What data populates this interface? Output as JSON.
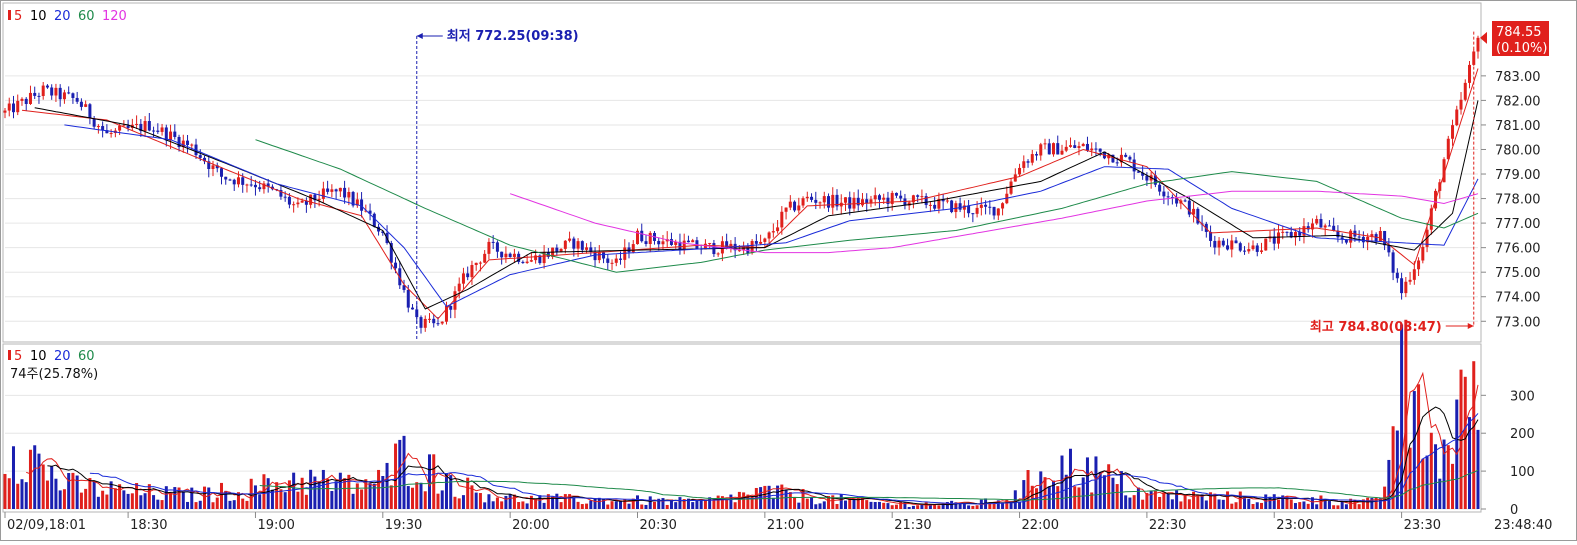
{
  "chart_data": [
    {
      "type": "candlestick",
      "name": "price-panel",
      "legend": [
        {
          "label": "5",
          "color": "#e0201c",
          "marker": true
        },
        {
          "label": "10",
          "color": "#000000"
        },
        {
          "label": "20",
          "color": "#1a2bd8"
        },
        {
          "label": "60",
          "color": "#1e8a4a"
        },
        {
          "label": "120",
          "color": "#e234e2"
        }
      ],
      "ylim": [
        772.4,
        784.95
      ],
      "yticks": [
        "773.00",
        "774.00",
        "775.00",
        "776.00",
        "777.00",
        "778.00",
        "779.00",
        "780.00",
        "781.00",
        "782.00",
        "783.00"
      ],
      "yticks_values": [
        773,
        774,
        775,
        776,
        777,
        778,
        779,
        780,
        781,
        782,
        783
      ],
      "current_price": {
        "value": "784.55",
        "change": "(0.10%)",
        "num": 784.55
      },
      "low_annotation": {
        "text": "최저 772.25(09:38)",
        "value": 772.25,
        "time": "19:38"
      },
      "high_annotation": {
        "text": "최고 784.80(03:47)",
        "value": 784.8,
        "time": "23:47"
      },
      "candle_points": [
        [
          "18:01",
          781.5
        ],
        [
          "18:10",
          782.4
        ],
        [
          "18:18",
          782.0
        ],
        [
          "18:25",
          780.6
        ],
        [
          "18:35",
          781.0
        ],
        [
          "18:45",
          780.1
        ],
        [
          "18:52",
          778.9
        ],
        [
          "19:00",
          778.6
        ],
        [
          "19:05",
          778.2
        ],
        [
          "19:10",
          777.6
        ],
        [
          "19:15",
          778.1
        ],
        [
          "19:20",
          778.3
        ],
        [
          "19:25",
          777.6
        ],
        [
          "19:30",
          776.6
        ],
        [
          "19:35",
          774.2
        ],
        [
          "19:38",
          772.9
        ],
        [
          "19:43",
          772.8
        ],
        [
          "19:50",
          775.0
        ],
        [
          "19:55",
          776.0
        ],
        [
          "20:05",
          775.5
        ],
        [
          "20:15",
          776.2
        ],
        [
          "20:25",
          775.3
        ],
        [
          "20:30",
          776.5
        ],
        [
          "20:35",
          776.3
        ],
        [
          "20:45",
          776.0
        ],
        [
          "20:55",
          776.0
        ],
        [
          "21:00",
          776.2
        ],
        [
          "21:05",
          777.5
        ],
        [
          "21:10",
          778.0
        ],
        [
          "21:20",
          777.8
        ],
        [
          "21:30",
          778.0
        ],
        [
          "21:40",
          777.8
        ],
        [
          "21:50",
          777.5
        ],
        [
          "21:55",
          777.6
        ],
        [
          "22:00",
          779.4
        ],
        [
          "22:05",
          780.0
        ],
        [
          "22:15",
          780.1
        ],
        [
          "22:25",
          779.6
        ],
        [
          "22:35",
          778.2
        ],
        [
          "22:40",
          777.6
        ],
        [
          "22:45",
          776.3
        ],
        [
          "22:55",
          776.0
        ],
        [
          "23:05",
          776.6
        ],
        [
          "23:10",
          777.0
        ],
        [
          "23:15",
          776.4
        ],
        [
          "23:25",
          776.5
        ],
        [
          "23:30",
          774.2
        ],
        [
          "23:35",
          776.0
        ],
        [
          "23:40",
          779.6
        ],
        [
          "23:45",
          782.6
        ],
        [
          "23:48",
          784.55
        ]
      ],
      "ma_points": {
        "5": [
          [
            "18:05",
            781.6
          ],
          [
            "18:25",
            781.2
          ],
          [
            "18:50",
            779.4
          ],
          [
            "19:10",
            778.0
          ],
          [
            "19:25",
            777.3
          ],
          [
            "19:35",
            774.5
          ],
          [
            "19:43",
            773.1
          ],
          [
            "19:55",
            775.5
          ],
          [
            "20:20",
            775.8
          ],
          [
            "20:45",
            776.1
          ],
          [
            "21:00",
            776.0
          ],
          [
            "21:10",
            777.7
          ],
          [
            "21:35",
            777.9
          ],
          [
            "22:00",
            778.9
          ],
          [
            "22:15",
            780.0
          ],
          [
            "22:30",
            779.3
          ],
          [
            "22:45",
            776.6
          ],
          [
            "23:10",
            776.8
          ],
          [
            "23:25",
            776.4
          ],
          [
            "23:33",
            775.3
          ],
          [
            "23:40",
            779.0
          ],
          [
            "23:48",
            783.3
          ]
        ],
        "10": [
          [
            "18:08",
            781.7
          ],
          [
            "18:30",
            781.0
          ],
          [
            "18:55",
            779.3
          ],
          [
            "19:15",
            777.9
          ],
          [
            "19:30",
            776.7
          ],
          [
            "19:40",
            773.5
          ],
          [
            "19:50",
            774.3
          ],
          [
            "20:05",
            775.8
          ],
          [
            "20:30",
            775.9
          ],
          [
            "21:00",
            776.0
          ],
          [
            "21:15",
            777.3
          ],
          [
            "21:40",
            777.9
          ],
          [
            "22:05",
            778.7
          ],
          [
            "22:20",
            779.9
          ],
          [
            "22:40",
            778.0
          ],
          [
            "22:55",
            776.4
          ],
          [
            "23:15",
            776.5
          ],
          [
            "23:33",
            775.9
          ],
          [
            "23:42",
            777.4
          ],
          [
            "23:48",
            782.0
          ]
        ],
        "20": [
          [
            "18:15",
            781.0
          ],
          [
            "18:40",
            780.4
          ],
          [
            "19:05",
            778.6
          ],
          [
            "19:25",
            777.7
          ],
          [
            "19:35",
            776.0
          ],
          [
            "19:45",
            773.6
          ],
          [
            "20:00",
            774.9
          ],
          [
            "20:20",
            775.7
          ],
          [
            "20:50",
            776.0
          ],
          [
            "21:05",
            776.2
          ],
          [
            "21:20",
            777.1
          ],
          [
            "21:45",
            777.6
          ],
          [
            "22:05",
            778.3
          ],
          [
            "22:20",
            779.3
          ],
          [
            "22:35",
            779.2
          ],
          [
            "22:50",
            777.6
          ],
          [
            "23:10",
            776.4
          ],
          [
            "23:30",
            776.2
          ],
          [
            "23:40",
            776.1
          ],
          [
            "23:48",
            778.8
          ]
        ],
        "60": [
          [
            "19:00",
            780.4
          ],
          [
            "19:20",
            779.2
          ],
          [
            "19:40",
            777.6
          ],
          [
            "20:00",
            776.1
          ],
          [
            "20:25",
            775.0
          ],
          [
            "20:45",
            775.4
          ],
          [
            "21:00",
            775.9
          ],
          [
            "21:20",
            776.3
          ],
          [
            "21:45",
            776.7
          ],
          [
            "22:10",
            777.6
          ],
          [
            "22:30",
            778.6
          ],
          [
            "22:50",
            779.1
          ],
          [
            "23:10",
            778.7
          ],
          [
            "23:30",
            777.2
          ],
          [
            "23:40",
            776.8
          ],
          [
            "23:48",
            777.4
          ]
        ],
        "120": [
          [
            "20:00",
            778.2
          ],
          [
            "20:20",
            777.0
          ],
          [
            "20:40",
            776.2
          ],
          [
            "21:00",
            775.8
          ],
          [
            "21:15",
            775.8
          ],
          [
            "21:30",
            776.0
          ],
          [
            "21:50",
            776.6
          ],
          [
            "22:10",
            777.2
          ],
          [
            "22:30",
            777.9
          ],
          [
            "22:50",
            778.3
          ],
          [
            "23:10",
            778.3
          ],
          [
            "23:30",
            778.1
          ],
          [
            "23:40",
            777.8
          ],
          [
            "23:48",
            778.2
          ]
        ]
      }
    },
    {
      "type": "bar",
      "name": "volume-panel",
      "legend": [
        {
          "label": "5",
          "color": "#e0201c",
          "marker": true
        },
        {
          "label": "10",
          "color": "#000000"
        },
        {
          "label": "20",
          "color": "#1a2bd8"
        },
        {
          "label": "60",
          "color": "#1e8a4a"
        }
      ],
      "volume_label": "74주(25.78%)",
      "ylim": [
        0,
        380
      ],
      "yticks": [
        "0",
        "100",
        "200",
        "300"
      ],
      "yticks_values": [
        0,
        100,
        200,
        300
      ],
      "volume_points": [
        [
          "18:01",
          120
        ],
        [
          "18:02",
          210
        ],
        [
          "18:15",
          70
        ],
        [
          "18:30",
          50
        ],
        [
          "18:45",
          40
        ],
        [
          "19:00",
          60
        ],
        [
          "19:10",
          90
        ],
        [
          "19:20",
          70
        ],
        [
          "19:30",
          80
        ],
        [
          "19:35",
          160
        ],
        [
          "19:40",
          120
        ],
        [
          "19:50",
          60
        ],
        [
          "20:00",
          30
        ],
        [
          "20:30",
          25
        ],
        [
          "20:45",
          20
        ],
        [
          "21:00",
          50
        ],
        [
          "21:15",
          30
        ],
        [
          "21:30",
          15
        ],
        [
          "21:50",
          15
        ],
        [
          "22:00",
          40
        ],
        [
          "22:05",
          120
        ],
        [
          "22:15",
          120
        ],
        [
          "22:30",
          40
        ],
        [
          "22:45",
          35
        ],
        [
          "23:00",
          30
        ],
        [
          "23:15",
          25
        ],
        [
          "23:25",
          20
        ],
        [
          "23:30",
          390
        ],
        [
          "23:35",
          200
        ],
        [
          "23:40",
          160
        ],
        [
          "23:45",
          360
        ],
        [
          "23:47",
          280
        ],
        [
          "23:48",
          280
        ]
      ]
    }
  ],
  "x_axis": {
    "range": [
      "18:01",
      "23:48"
    ],
    "ticks": [
      {
        "label": "02/09,18:01",
        "time": "18:01"
      },
      {
        "label": "18:30",
        "time": "18:30"
      },
      {
        "label": "19:00",
        "time": "19:00"
      },
      {
        "label": "19:30",
        "time": "19:30"
      },
      {
        "label": "20:00",
        "time": "20:00"
      },
      {
        "label": "20:30",
        "time": "20:30"
      },
      {
        "label": "21:00",
        "time": "21:00"
      },
      {
        "label": "21:30",
        "time": "21:30"
      },
      {
        "label": "22:00",
        "time": "22:00"
      },
      {
        "label": "22:30",
        "time": "22:30"
      },
      {
        "label": "23:00",
        "time": "23:00"
      },
      {
        "label": "23:30",
        "time": "23:30"
      }
    ],
    "current_time": "23:48:40"
  },
  "colors": {
    "up": "#e0201c",
    "down": "#1a1fb0",
    "axis": "#888888",
    "grid": "#e6e6e6",
    "price_box": "#e0201c",
    "low_text": "#1a1fb0",
    "high_text": "#e0201c"
  }
}
